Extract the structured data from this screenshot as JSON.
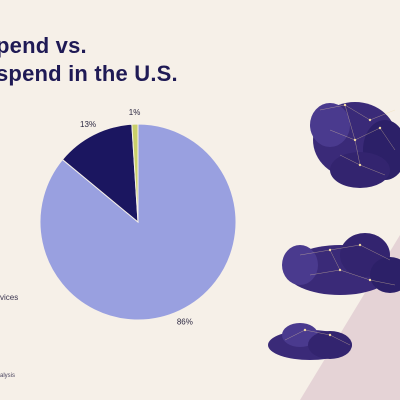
{
  "title_lines": [
    "pend vs.",
    "spend in the U.S."
  ],
  "legend_fragment": "vices",
  "source_fragment": "alysis",
  "chart_data": {
    "type": "pie",
    "title": "pend vs. spend in the U.S.",
    "start_angle_deg": 0,
    "direction": "clockwise",
    "slices": [
      {
        "label": "86%",
        "value": 86,
        "color": "#99a0e0"
      },
      {
        "label": "13%",
        "value": 13,
        "color": "#1b1660"
      },
      {
        "label": "1%",
        "value": 1,
        "color": "#c9cf6a"
      }
    ]
  },
  "colors": {
    "background": "#f6f0e8",
    "title": "#1f1a55",
    "cloud": "#3a2a78",
    "network": "#f2d9a0",
    "triangle": "#e5d3d6"
  }
}
